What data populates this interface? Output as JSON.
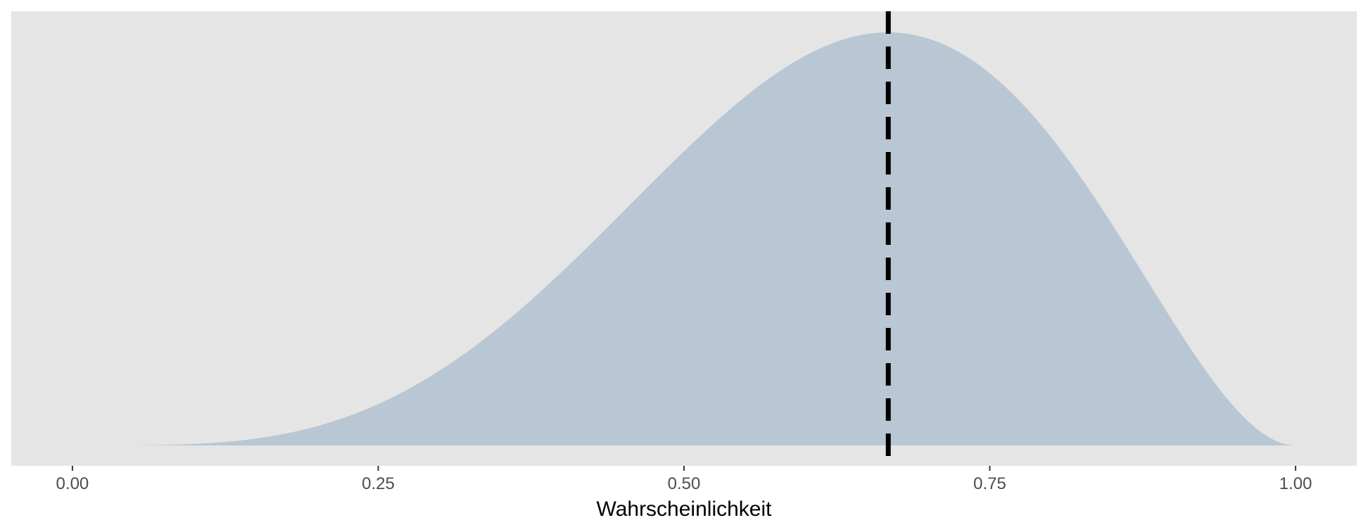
{
  "chart_data": {
    "type": "area",
    "title": "",
    "xlabel": "Wahrscheinlichkeit",
    "ylabel": "",
    "xlim": [
      -0.05,
      1.05
    ],
    "ylim": [
      0,
      1.05
    ],
    "x_ticks": [
      0.0,
      0.25,
      0.5,
      0.75,
      1.0
    ],
    "x_tick_labels": [
      "0.00",
      "0.25",
      "0.50",
      "0.75",
      "1.00"
    ],
    "y_axis_visible": false,
    "grid": false,
    "series": [
      {
        "distribution": "beta",
        "alpha": 5,
        "beta": 3,
        "density_normalized_to_peak": true,
        "x_range": [
          0.0,
          1.0
        ],
        "fill_color": "#b9c7d4"
      }
    ],
    "reference_line": {
      "orientation": "vertical",
      "x": 0.667,
      "style": "dashed",
      "color": "#000000"
    },
    "panel_background": "#e5e5e5"
  }
}
